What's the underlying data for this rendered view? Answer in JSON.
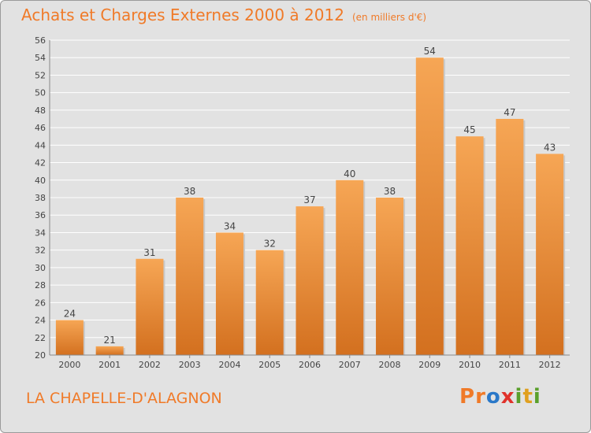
{
  "header": {
    "title": "Achats et Charges Externes 2000 à 2012",
    "unit": "(en milliers d'€)"
  },
  "footer": {
    "commune": "LA CHAPELLE-D'ALAGNON",
    "brand_letters": [
      "P",
      "r",
      "o",
      "x",
      "i",
      "t",
      "i"
    ],
    "brand_colors": [
      "#f07a28",
      "#f07a28",
      "#2a78c8",
      "#e0322b",
      "#5aa02c",
      "#e0a020",
      "#5aa02c"
    ]
  },
  "colors": {
    "bar_light": "#f6a655",
    "bar_dark": "#d3701f",
    "grid": "#ffffff",
    "text_accent": "#f07a28"
  },
  "chart_data": {
    "type": "bar",
    "title": "Achats et Charges Externes 2000 à 2012",
    "subtitle": "(en milliers d'€)",
    "categories": [
      "2000",
      "2001",
      "2002",
      "2003",
      "2004",
      "2005",
      "2006",
      "2007",
      "2008",
      "2009",
      "2010",
      "2011",
      "2012"
    ],
    "values": [
      24,
      21,
      31,
      38,
      34,
      32,
      37,
      40,
      38,
      54,
      45,
      47,
      43
    ],
    "ylim": [
      20,
      56
    ],
    "yticks": [
      20,
      22,
      24,
      26,
      28,
      30,
      32,
      34,
      36,
      38,
      40,
      42,
      44,
      46,
      48,
      50,
      52,
      54,
      56
    ],
    "grid": true,
    "legend": "none"
  }
}
